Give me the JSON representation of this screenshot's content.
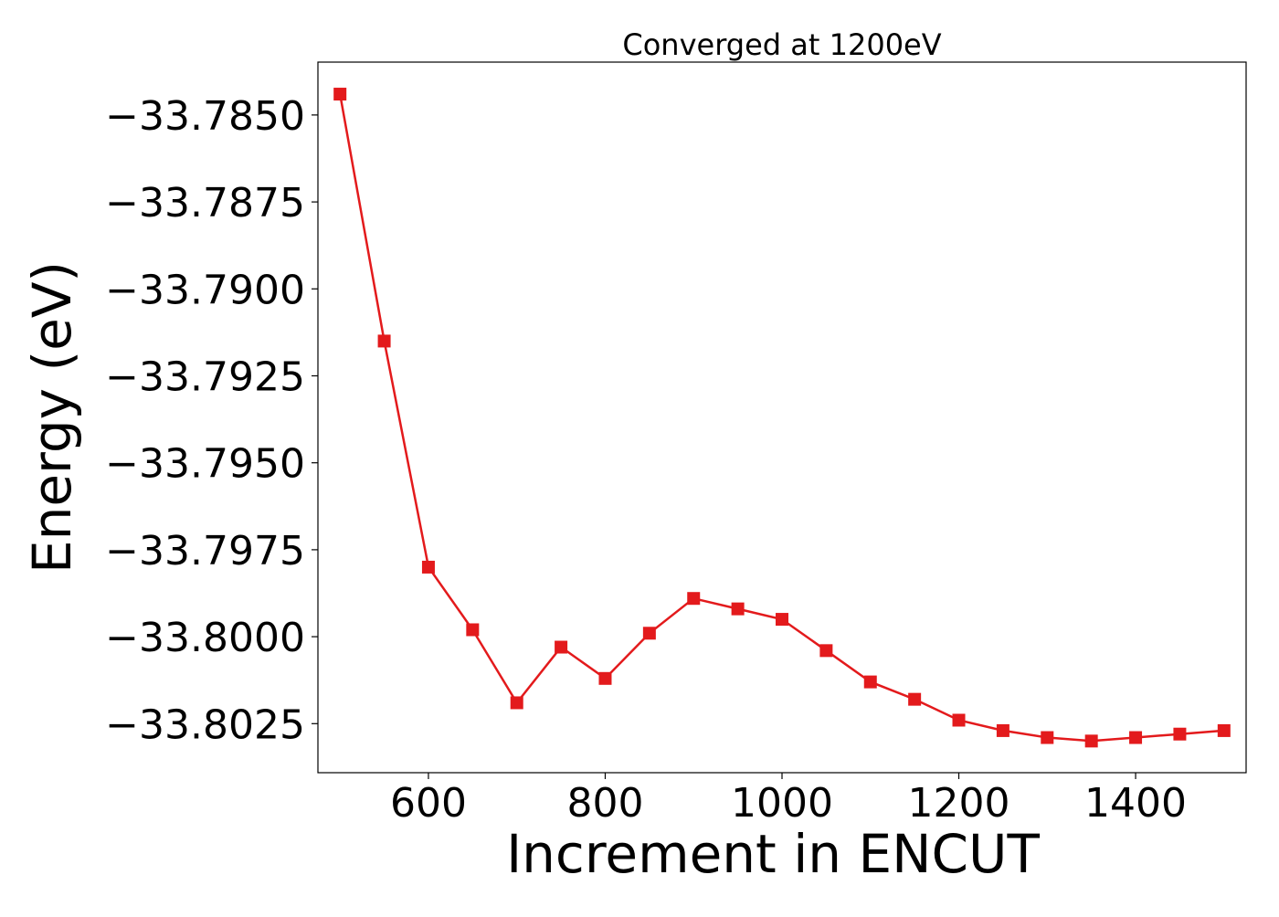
{
  "chart_data": {
    "type": "line",
    "title": "Converged at 1200eV",
    "xlabel": "Increment in ENCUT",
    "ylabel": "Energy (eV)",
    "xlim": [
      475,
      1525
    ],
    "ylim": [
      -33.80391,
      -33.78348
    ],
    "x_ticks": [
      600,
      800,
      1000,
      1200,
      1400
    ],
    "x_tick_labels": [
      "600",
      "800",
      "1000",
      "1200",
      "1400"
    ],
    "y_ticks": [
      -33.785,
      -33.7875,
      -33.79,
      -33.7925,
      -33.795,
      -33.7975,
      -33.8,
      -33.8025
    ],
    "y_tick_labels": [
      "−33.7850",
      "−33.7875",
      "−33.7900",
      "−33.7925",
      "−33.7950",
      "−33.7975",
      "−33.8000",
      "−33.8025"
    ],
    "grid": false,
    "legend": "none",
    "series": [
      {
        "color": "#e31a1c",
        "marker": "square",
        "x": [
          500,
          550,
          600,
          650,
          700,
          750,
          800,
          850,
          900,
          950,
          1000,
          1050,
          1100,
          1150,
          1200,
          1250,
          1300,
          1350,
          1400,
          1450,
          1500
        ],
        "y": [
          -33.7844,
          -33.7915,
          -33.798,
          -33.7998,
          -33.8019,
          -33.8003,
          -33.8012,
          -33.7999,
          -33.7989,
          -33.7992,
          -33.7995,
          -33.8004,
          -33.8013,
          -33.8018,
          -33.8024,
          -33.8027,
          -33.8029,
          -33.803,
          -33.8029,
          -33.8028,
          -33.8027
        ]
      }
    ]
  }
}
